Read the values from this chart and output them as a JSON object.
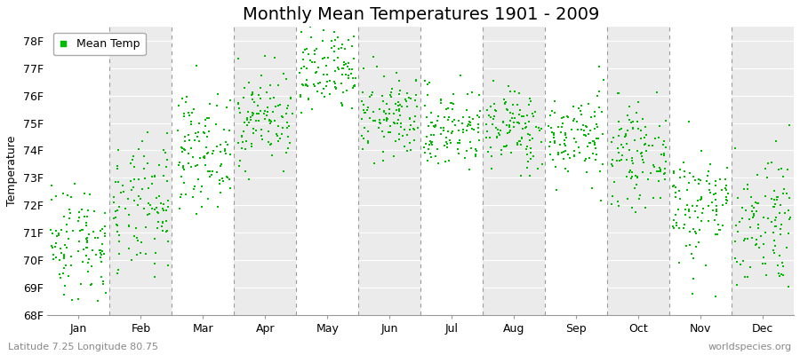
{
  "title": "Monthly Mean Temperatures 1901 - 2009",
  "ylabel": "Temperature",
  "xlabel_months": [
    "Jan",
    "Feb",
    "Mar",
    "Apr",
    "May",
    "Jun",
    "Jul",
    "Aug",
    "Sep",
    "Oct",
    "Nov",
    "Dec"
  ],
  "ylim": [
    68,
    78.5
  ],
  "yticks": [
    68,
    69,
    70,
    71,
    72,
    73,
    74,
    75,
    76,
    77,
    78
  ],
  "ytick_labels": [
    "68F",
    "69F",
    "70F",
    "71F",
    "72F",
    "73F",
    "74F",
    "75F",
    "76F",
    "77F",
    "78F"
  ],
  "dot_color": "#00bb00",
  "bg_color": "#ffffff",
  "band_colors": [
    "#ffffff",
    "#ebebeb"
  ],
  "grid_color": "#ffffff",
  "dashed_line_color": "#999999",
  "legend_label": "Mean Temp",
  "footer_left": "Latitude 7.25 Longitude 80.75",
  "footer_right": "worldspecies.org",
  "title_fontsize": 14,
  "axis_label_fontsize": 9,
  "tick_fontsize": 9,
  "footer_fontsize": 8,
  "monthly_means": [
    70.7,
    71.8,
    74.0,
    75.2,
    76.8,
    75.2,
    74.8,
    74.8,
    74.5,
    73.8,
    72.0,
    71.5
  ],
  "monthly_stds": [
    1.1,
    1.2,
    1.0,
    0.85,
    0.85,
    0.75,
    0.75,
    0.75,
    0.8,
    0.85,
    1.1,
    1.3
  ],
  "n_years": 109,
  "seed": 42
}
